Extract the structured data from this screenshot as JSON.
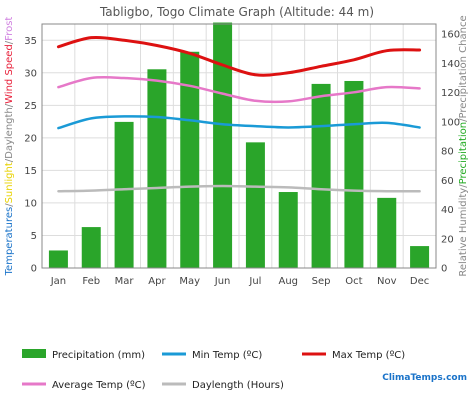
{
  "chart_data": {
    "type": "bar",
    "title": "Tabligbo, Togo Climate Graph (Altitude: 44 m)",
    "categories": [
      "Jan",
      "Feb",
      "Mar",
      "Apr",
      "May",
      "Jun",
      "Jul",
      "Aug",
      "Sep",
      "Oct",
      "Nov",
      "Dec"
    ],
    "ylabel_left": {
      "parts": [
        {
          "text": "Temperatures",
          "color": "#1a73c9"
        },
        {
          "text": "/",
          "color": "#888888"
        },
        {
          "text": "Sunlight",
          "color": "#e8d200"
        },
        {
          "text": "/",
          "color": "#888888"
        },
        {
          "text": "Daylength",
          "color": "#888888"
        },
        {
          "text": "/",
          "color": "#888888"
        },
        {
          "text": "Wind Speed",
          "color": "#e8203a"
        },
        {
          "text": "/",
          "color": "#888888"
        },
        {
          "text": "Frost",
          "color": "#d080e0"
        }
      ]
    },
    "ylabel_right": {
      "parts": [
        {
          "text": "Relative Humidity",
          "color": "#888888"
        },
        {
          "text": "/",
          "color": "#888888"
        },
        {
          "text": "Precipitation",
          "color": "#22aa22"
        },
        {
          "text": "/",
          "color": "#888888"
        },
        {
          "text": "Precipitation Chance",
          "color": "#888888"
        }
      ]
    },
    "left_axis": {
      "min": 0,
      "max": 37.5,
      "ticks": [
        0,
        5,
        10,
        15,
        20,
        25,
        30,
        35
      ]
    },
    "right_axis": {
      "min": 0,
      "max": 167,
      "ticks": [
        0,
        20,
        40,
        60,
        80,
        100,
        120,
        140,
        160
      ]
    },
    "grid": true,
    "legend_position": "bottom",
    "series": [
      {
        "name": "Precipitation (mm)",
        "kind": "bar",
        "axis": "right",
        "color": "#2aa52a",
        "values": [
          12,
          28,
          100,
          136,
          148,
          168,
          86,
          52,
          126,
          128,
          48,
          15
        ]
      },
      {
        "name": "Min Temp (ºC)",
        "kind": "line",
        "axis": "left",
        "color": "#1a9ad6",
        "values": [
          21.5,
          23.0,
          23.3,
          23.2,
          22.7,
          22.1,
          21.8,
          21.6,
          21.8,
          22.1,
          22.3,
          21.6
        ]
      },
      {
        "name": "Max Temp (ºC)",
        "kind": "line",
        "axis": "left",
        "color": "#dd1111",
        "values": [
          34.0,
          35.4,
          35.0,
          34.2,
          33.0,
          31.2,
          29.7,
          30.0,
          31.0,
          32.0,
          33.4,
          33.5
        ]
      },
      {
        "name": "Average Temp (ºC)",
        "kind": "line",
        "axis": "left",
        "color": "#e678c8",
        "values": [
          27.8,
          29.2,
          29.2,
          28.8,
          28.0,
          26.8,
          25.7,
          25.6,
          26.4,
          27.0,
          27.8,
          27.6
        ]
      },
      {
        "name": "Daylength (Hours)",
        "kind": "line",
        "axis": "left",
        "color": "#bbbbbb",
        "values": [
          11.8,
          11.9,
          12.1,
          12.3,
          12.5,
          12.6,
          12.5,
          12.4,
          12.1,
          11.9,
          11.8,
          11.8
        ]
      }
    ],
    "brand": "ClimaTemps.com"
  }
}
